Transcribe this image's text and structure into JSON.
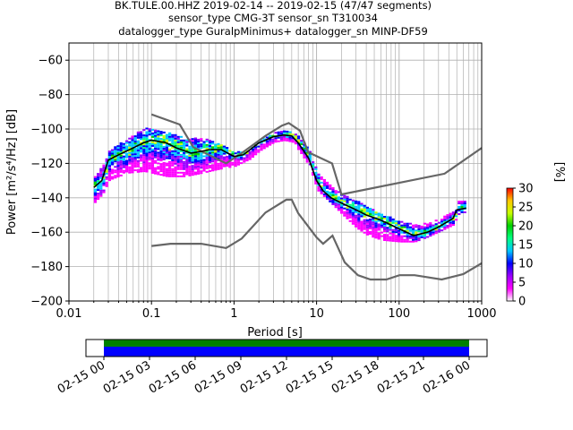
{
  "title": {
    "line1": "BK.TULE.00.HHZ   2019-02-14 -- 2019-02-15  (47/47 segments)",
    "line2": "sensor_type CMG-3T sensor_sn T310034",
    "line3": "datalogger_type GuralpMinimus+ datalogger_sn MINP-DF59"
  },
  "chart_data": {
    "type": "heatmap",
    "subtype": "probabilistic power spectral density",
    "xlabel": "Period [s]",
    "ylabel": "Power [m²/s⁴/Hz] [dB]",
    "x_scale": "log",
    "xlim": [
      0.01,
      1000
    ],
    "ylim": [
      -200,
      -50
    ],
    "x_ticks": [
      {
        "value": 0.01,
        "label": "0.01"
      },
      {
        "value": 0.1,
        "label": "0.1"
      },
      {
        "value": 1,
        "label": "1"
      },
      {
        "value": 10,
        "label": "10"
      },
      {
        "value": 100,
        "label": "100"
      },
      {
        "value": 1000,
        "label": "1000"
      }
    ],
    "y_ticks": [
      {
        "value": -60,
        "label": "−60"
      },
      {
        "value": -80,
        "label": "−80"
      },
      {
        "value": -100,
        "label": "−100"
      },
      {
        "value": -120,
        "label": "−120"
      },
      {
        "value": -140,
        "label": "−140"
      },
      {
        "value": -160,
        "label": "−160"
      },
      {
        "value": -180,
        "label": "−180"
      },
      {
        "value": -200,
        "label": "−200"
      }
    ],
    "grid": true,
    "colorbar": {
      "label": "[%]",
      "range": [
        0,
        30
      ],
      "ticks": [
        {
          "value": 0,
          "label": "0"
        },
        {
          "value": 5,
          "label": "5"
        },
        {
          "value": 10,
          "label": "10"
        },
        {
          "value": 15,
          "label": "15"
        },
        {
          "value": 20,
          "label": "20"
        },
        {
          "value": 25,
          "label": "25"
        },
        {
          "value": 30,
          "label": "30"
        }
      ],
      "colors": [
        "#ffffff",
        "#ff00ff",
        "#9900ff",
        "#0000ff",
        "#00c8ff",
        "#00ff80",
        "#00d000",
        "#c8ff00",
        "#ffc800",
        "#ff0000"
      ]
    },
    "new_high_noise_model": [
      [
        0.1,
        -91.5
      ],
      [
        0.22,
        -97.4
      ],
      [
        0.32,
        -110.5
      ],
      [
        0.8,
        -120
      ],
      [
        1.24,
        -114
      ],
      [
        2.4,
        -104
      ],
      [
        3.8,
        -98
      ],
      [
        4.6,
        -96.5
      ],
      [
        6.3,
        -101
      ],
      [
        7.9,
        -113.5
      ],
      [
        15.4,
        -120
      ],
      [
        20,
        -138
      ],
      [
        354.8,
        -126
      ],
      [
        1000,
        -111
      ]
    ],
    "new_low_noise_model": [
      [
        0.1,
        -168
      ],
      [
        0.17,
        -166.7
      ],
      [
        0.4,
        -166.7
      ],
      [
        0.8,
        -169.2
      ],
      [
        1.24,
        -163.7
      ],
      [
        2.4,
        -148.6
      ],
      [
        4.3,
        -141.1
      ],
      [
        5,
        -141.1
      ],
      [
        6,
        -149
      ],
      [
        10,
        -163
      ],
      [
        12,
        -166.7
      ],
      [
        15.6,
        -162
      ],
      [
        21.9,
        -177.5
      ],
      [
        31.6,
        -185
      ],
      [
        45,
        -187.5
      ],
      [
        70,
        -187.5
      ],
      [
        101,
        -185
      ],
      [
        154,
        -185
      ],
      [
        328,
        -187.5
      ],
      [
        600,
        -184.4
      ],
      [
        1000,
        -178
      ]
    ],
    "mode": [
      [
        0.02,
        -134
      ],
      [
        0.025,
        -130
      ],
      [
        0.03,
        -118
      ],
      [
        0.04,
        -115
      ],
      [
        0.06,
        -111
      ],
      [
        0.08,
        -108
      ],
      [
        0.1,
        -106.5
      ],
      [
        0.15,
        -108
      ],
      [
        0.2,
        -111
      ],
      [
        0.3,
        -114
      ],
      [
        0.4,
        -113
      ],
      [
        0.5,
        -112
      ],
      [
        0.7,
        -112
      ],
      [
        1.0,
        -116
      ],
      [
        1.3,
        -115
      ],
      [
        2,
        -108
      ],
      [
        3,
        -104.5
      ],
      [
        4,
        -103.5
      ],
      [
        5,
        -104
      ],
      [
        6,
        -108
      ],
      [
        8,
        -117
      ],
      [
        10,
        -130
      ],
      [
        12,
        -136
      ],
      [
        15,
        -140
      ],
      [
        20,
        -143
      ],
      [
        30,
        -147
      ],
      [
        40,
        -150
      ],
      [
        60,
        -153
      ],
      [
        100,
        -158
      ],
      [
        150,
        -162
      ],
      [
        220,
        -160
      ],
      [
        300,
        -157
      ],
      [
        450,
        -152
      ],
      [
        500,
        -147
      ],
      [
        650,
        -146
      ]
    ],
    "histogram_envelope": {
      "upper": [
        [
          0.02,
          -128
        ],
        [
          0.025,
          -122
        ],
        [
          0.03,
          -113
        ],
        [
          0.05,
          -106
        ],
        [
          0.08,
          -100
        ],
        [
          0.15,
          -102
        ],
        [
          0.25,
          -106
        ],
        [
          0.4,
          -106
        ],
        [
          0.6,
          -108
        ],
        [
          1.0,
          -114
        ],
        [
          1.5,
          -113
        ],
        [
          2,
          -107
        ],
        [
          3,
          -102
        ],
        [
          4,
          -101
        ],
        [
          5,
          -102
        ],
        [
          6,
          -105
        ],
        [
          8,
          -113
        ],
        [
          10,
          -126
        ],
        [
          15,
          -134
        ],
        [
          20,
          -139
        ],
        [
          30,
          -142
        ],
        [
          40,
          -146
        ],
        [
          60,
          -150
        ],
        [
          100,
          -154
        ],
        [
          150,
          -156
        ],
        [
          220,
          -155
        ],
        [
          300,
          -153
        ],
        [
          450,
          -148
        ],
        [
          500,
          -142
        ],
        [
          650,
          -142
        ]
      ],
      "lower": [
        [
          0.02,
          -143
        ],
        [
          0.025,
          -138
        ],
        [
          0.03,
          -130
        ],
        [
          0.05,
          -126
        ],
        [
          0.08,
          -125
        ],
        [
          0.15,
          -128
        ],
        [
          0.25,
          -128
        ],
        [
          0.4,
          -126
        ],
        [
          0.6,
          -124
        ],
        [
          1.0,
          -122
        ],
        [
          1.5,
          -118
        ],
        [
          2,
          -113
        ],
        [
          3,
          -108
        ],
        [
          4,
          -107
        ],
        [
          5,
          -108
        ],
        [
          6,
          -113
        ],
        [
          8,
          -122
        ],
        [
          10,
          -136
        ],
        [
          15,
          -144
        ],
        [
          20,
          -150
        ],
        [
          30,
          -158
        ],
        [
          40,
          -162
        ],
        [
          60,
          -165
        ],
        [
          100,
          -166
        ],
        [
          150,
          -166
        ],
        [
          220,
          -163
        ],
        [
          300,
          -160
        ],
        [
          450,
          -156
        ],
        [
          500,
          -150
        ],
        [
          650,
          -150
        ]
      ]
    },
    "time_axis": {
      "ticks": [
        "02-15 00",
        "02-15 03",
        "02-15 06",
        "02-15 09",
        "02-15 12",
        "02-15 15",
        "02-15 18",
        "02-15 21",
        "02-16 00"
      ],
      "coverage_colors": [
        "#008000",
        "#0000ff"
      ],
      "coverage_fraction": 1.0
    }
  }
}
